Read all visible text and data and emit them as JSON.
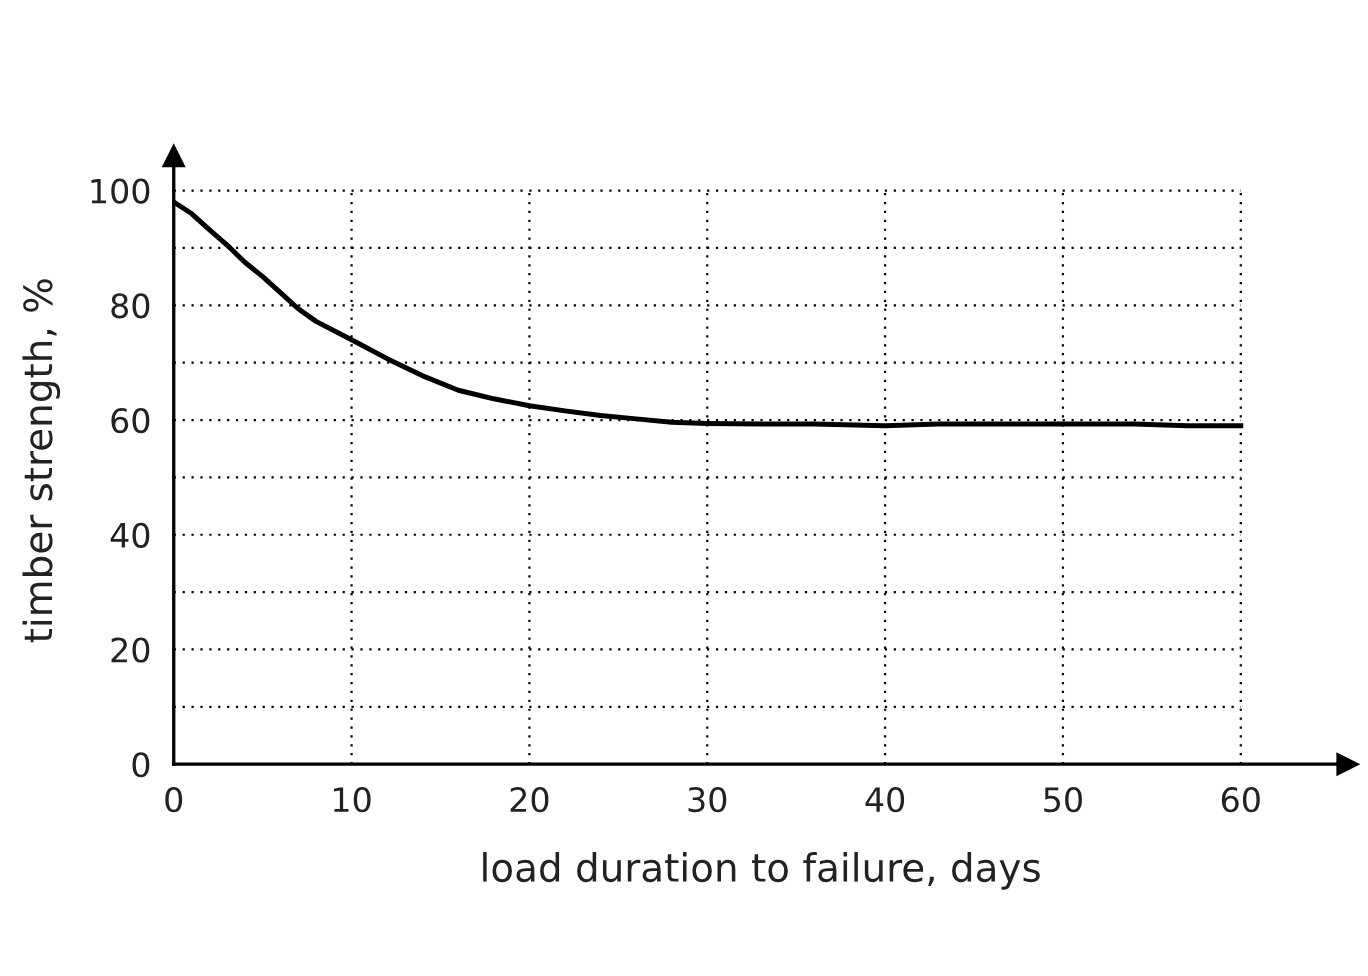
{
  "chart_data": {
    "type": "line",
    "xlabel": "load duration to failure, days",
    "ylabel": "timber strength, %",
    "x": [
      0,
      1,
      2,
      3,
      4,
      5,
      6,
      7,
      8,
      10,
      12,
      14,
      16,
      18,
      20,
      22,
      24,
      26,
      28,
      30,
      33,
      36,
      40,
      43,
      47,
      50,
      54,
      57,
      60
    ],
    "series": [
      {
        "color": "#000000",
        "values": [
          98,
          96,
          93.2,
          90.5,
          87.5,
          85,
          82.2,
          79.4,
          77.2,
          74,
          70.7,
          67.7,
          65.2,
          63.7,
          62.5,
          61.6,
          60.8,
          60.2,
          59.6,
          59.4,
          59.3,
          59.3,
          59,
          59.3,
          59.3,
          59.3,
          59.3,
          59,
          59
        ]
      }
    ],
    "xlim": [
      0,
      66
    ],
    "ylim": [
      0,
      106
    ],
    "xticks": [
      0,
      10,
      20,
      30,
      40,
      50,
      60
    ],
    "yticks": [
      0,
      {
        "value": 10,
        "label": null
      },
      20,
      {
        "value": 30,
        "label": null
      },
      40,
      {
        "value": 50,
        "label": null
      },
      60,
      {
        "value": 70,
        "label": null
      },
      80,
      {
        "value": 90,
        "label": null
      },
      100
    ],
    "grid": true,
    "marker": "none",
    "line_style": "solid"
  }
}
